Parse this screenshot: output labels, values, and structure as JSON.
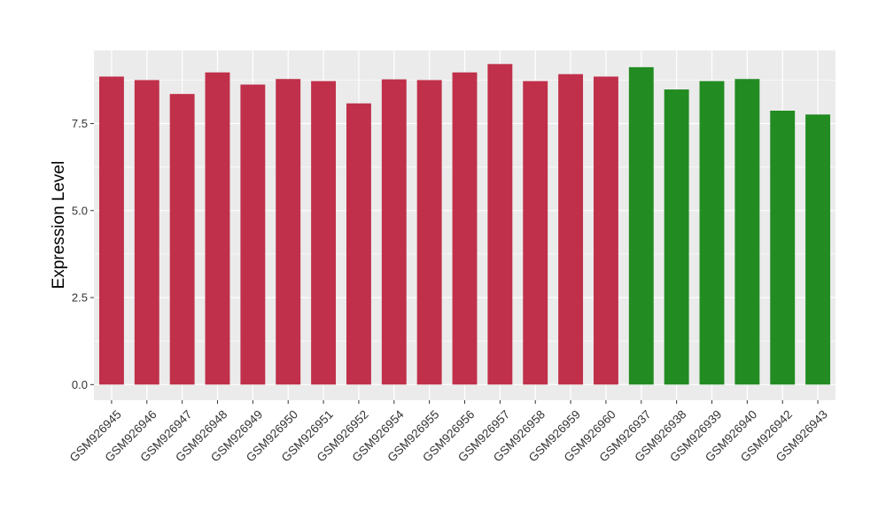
{
  "chart_data": {
    "type": "bar",
    "title": "",
    "xlabel": "",
    "ylabel": "Expression Level",
    "ylim": [
      -0.45,
      9.6
    ],
    "yticks": [
      0.0,
      2.5,
      5.0,
      7.5
    ],
    "ytick_labels": [
      "0.0",
      "2.5",
      "5.0",
      "7.5"
    ],
    "grid": true,
    "legend": "none",
    "categories": [
      "GSM926945",
      "GSM926946",
      "GSM926947",
      "GSM926948",
      "GSM926949",
      "GSM926950",
      "GSM926951",
      "GSM926952",
      "GSM926954",
      "GSM926955",
      "GSM926956",
      "GSM926957",
      "GSM926958",
      "GSM926959",
      "GSM926960",
      "GSM926937",
      "GSM926938",
      "GSM926939",
      "GSM926940",
      "GSM926942",
      "GSM926943"
    ],
    "values": [
      8.85,
      8.75,
      8.35,
      8.97,
      8.62,
      8.78,
      8.72,
      8.08,
      8.77,
      8.75,
      8.97,
      9.21,
      8.72,
      8.92,
      8.85,
      9.12,
      8.48,
      8.72,
      8.78,
      7.87,
      7.76
    ],
    "group_colors": [
      "#C0304A",
      "#C0304A",
      "#C0304A",
      "#C0304A",
      "#C0304A",
      "#C0304A",
      "#C0304A",
      "#C0304A",
      "#C0304A",
      "#C0304A",
      "#C0304A",
      "#C0304A",
      "#C0304A",
      "#C0304A",
      "#C0304A",
      "#228B22",
      "#228B22",
      "#228B22",
      "#228B22",
      "#228B22",
      "#228B22"
    ],
    "panel_background": "#EBEBEB",
    "grid_color": "#FFFFFF"
  }
}
